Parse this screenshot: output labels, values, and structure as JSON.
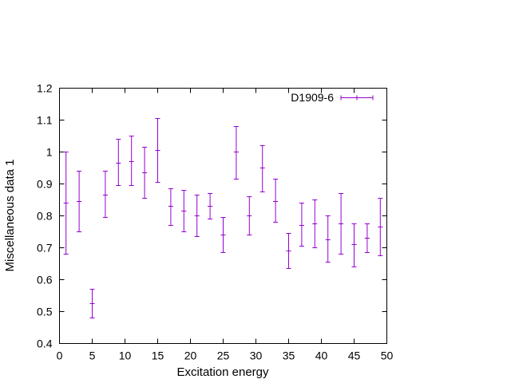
{
  "chart_data": {
    "type": "scatter",
    "title": "",
    "xlabel": "Excitation energy",
    "ylabel": "Miscellaneous data 1",
    "xlim": [
      0,
      50
    ],
    "ylim": [
      0.4,
      1.2
    ],
    "xticks": [
      0,
      5,
      10,
      15,
      20,
      25,
      30,
      35,
      40,
      45,
      50
    ],
    "yticks": [
      0.4,
      0.5,
      0.6,
      0.7,
      0.8,
      0.9,
      1,
      1.1,
      1.2
    ],
    "ytick_labels": [
      "0.4",
      "0.5",
      "0.6",
      "0.7",
      "0.8",
      "0.9",
      "1",
      "1.1",
      "1.2"
    ],
    "grid": false,
    "legend_position": "top-right",
    "series": [
      {
        "name": "D1909-6",
        "color": "#9400d3",
        "style": "errorbars",
        "points": [
          {
            "x": 1,
            "y": 0.84,
            "low": 0.68,
            "high": 1.0
          },
          {
            "x": 3,
            "y": 0.845,
            "low": 0.75,
            "high": 0.94
          },
          {
            "x": 5,
            "y": 0.525,
            "low": 0.48,
            "high": 0.57
          },
          {
            "x": 7,
            "y": 0.865,
            "low": 0.795,
            "high": 0.94
          },
          {
            "x": 9,
            "y": 0.965,
            "low": 0.895,
            "high": 1.04
          },
          {
            "x": 11,
            "y": 0.97,
            "low": 0.895,
            "high": 1.05
          },
          {
            "x": 13,
            "y": 0.935,
            "low": 0.855,
            "high": 1.015
          },
          {
            "x": 15,
            "y": 1.005,
            "low": 0.905,
            "high": 1.105
          },
          {
            "x": 17,
            "y": 0.83,
            "low": 0.77,
            "high": 0.885
          },
          {
            "x": 19,
            "y": 0.815,
            "low": 0.75,
            "high": 0.88
          },
          {
            "x": 21,
            "y": 0.8,
            "low": 0.735,
            "high": 0.865
          },
          {
            "x": 23,
            "y": 0.83,
            "low": 0.79,
            "high": 0.87
          },
          {
            "x": 25,
            "y": 0.74,
            "low": 0.685,
            "high": 0.795
          },
          {
            "x": 27,
            "y": 1.0,
            "low": 0.915,
            "high": 1.08
          },
          {
            "x": 29,
            "y": 0.8,
            "low": 0.74,
            "high": 0.86
          },
          {
            "x": 31,
            "y": 0.95,
            "low": 0.875,
            "high": 1.02
          },
          {
            "x": 33,
            "y": 0.845,
            "low": 0.78,
            "high": 0.915
          },
          {
            "x": 35,
            "y": 0.69,
            "low": 0.635,
            "high": 0.745
          },
          {
            "x": 37,
            "y": 0.77,
            "low": 0.705,
            "high": 0.84
          },
          {
            "x": 39,
            "y": 0.775,
            "low": 0.7,
            "high": 0.85
          },
          {
            "x": 41,
            "y": 0.725,
            "low": 0.655,
            "high": 0.8
          },
          {
            "x": 43,
            "y": 0.775,
            "low": 0.68,
            "high": 0.87
          },
          {
            "x": 45,
            "y": 0.71,
            "low": 0.64,
            "high": 0.775
          },
          {
            "x": 47,
            "y": 0.73,
            "low": 0.685,
            "high": 0.775
          },
          {
            "x": 49,
            "y": 0.765,
            "low": 0.675,
            "high": 0.855
          }
        ]
      }
    ]
  }
}
